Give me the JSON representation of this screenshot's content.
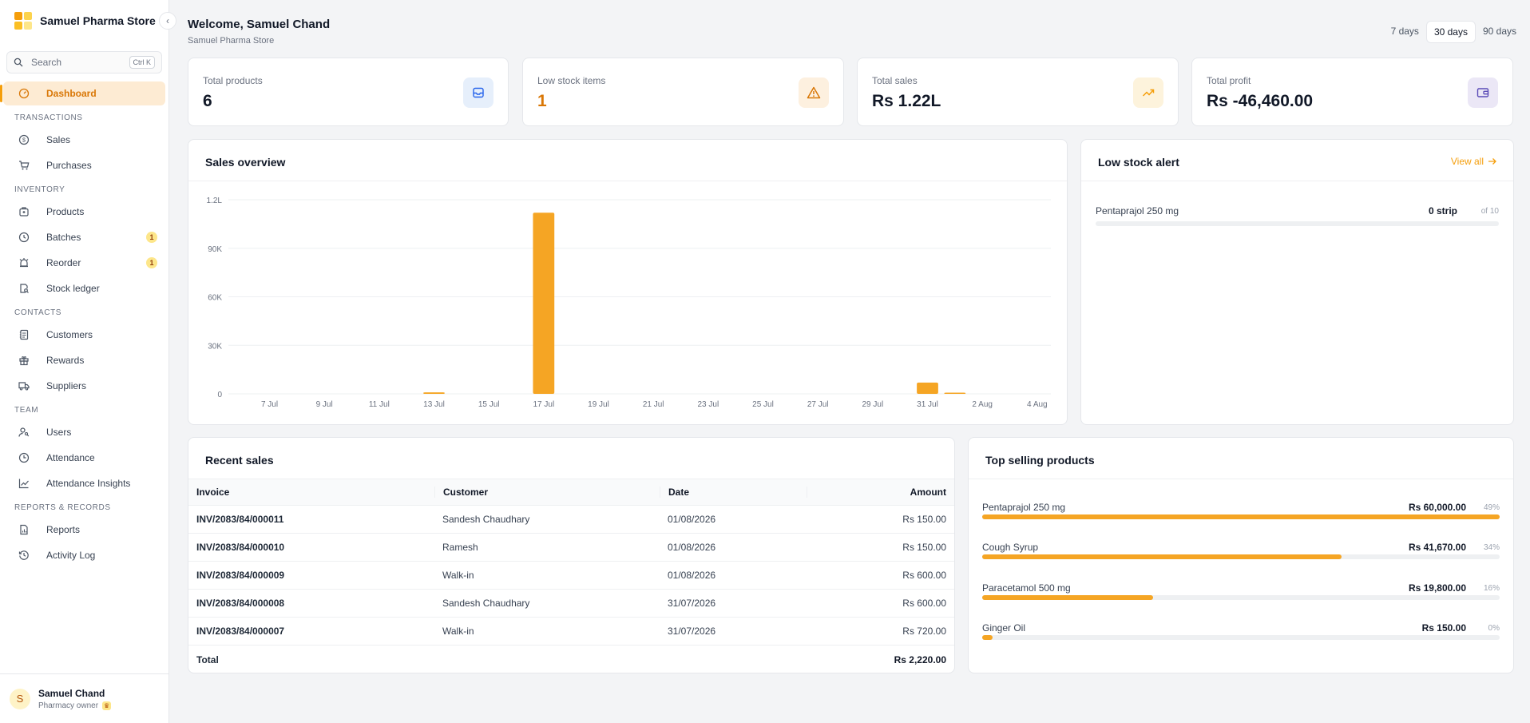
{
  "brand": {
    "name": "Samuel Pharma Store"
  },
  "search": {
    "label": "Search",
    "shortcut": "Ctrl K"
  },
  "nav": {
    "dashboard": "Dashboard",
    "sections": {
      "transactions": "TRANSACTIONS",
      "inventory": "INVENTORY",
      "contacts": "CONTACTS",
      "team": "TEAM",
      "reports": "REPORTS & RECORDS"
    },
    "items": {
      "sales": "Sales",
      "purchases": "Purchases",
      "products": "Products",
      "batches": "Batches",
      "reorder": "Reorder",
      "stock_ledger": "Stock ledger",
      "customers": "Customers",
      "rewards": "Rewards",
      "suppliers": "Suppliers",
      "users": "Users",
      "attendance": "Attendance",
      "attendance_insights": "Attendance Insights",
      "reports": "Reports",
      "activity_log": "Activity Log"
    },
    "badges": {
      "batches": "1",
      "reorder": "1"
    }
  },
  "user": {
    "name": "Samuel Chand",
    "role": "Pharmacy owner",
    "initial": "S"
  },
  "header": {
    "title": "Welcome, Samuel Chand",
    "subtitle": "Samuel Pharma Store"
  },
  "range": {
    "options": [
      "7 days",
      "30 days",
      "90 days"
    ],
    "selected": "30 days"
  },
  "stats": {
    "total_products": {
      "label": "Total products",
      "value": "6"
    },
    "low_stock": {
      "label": "Low stock items",
      "value": "1"
    },
    "total_sales": {
      "label": "Total sales",
      "value": "Rs 1.22L"
    },
    "total_profit": {
      "label": "Total profit",
      "value": "Rs -46,460.00"
    }
  },
  "sales_overview": {
    "title": "Sales overview"
  },
  "chart_data": {
    "type": "bar",
    "title": "Sales overview",
    "xlabel": "",
    "ylabel": "",
    "ylim": [
      0,
      120000
    ],
    "yticks": [
      0,
      30000,
      60000,
      90000,
      120000
    ],
    "ytick_labels": [
      "0",
      "30K",
      "60K",
      "90K",
      "1.2L"
    ],
    "grid": true,
    "categories": [
      "6 Jul",
      "7 Jul",
      "8 Jul",
      "9 Jul",
      "10 Jul",
      "11 Jul",
      "12 Jul",
      "13 Jul",
      "14 Jul",
      "15 Jul",
      "16 Jul",
      "17 Jul",
      "18 Jul",
      "19 Jul",
      "20 Jul",
      "21 Jul",
      "22 Jul",
      "23 Jul",
      "24 Jul",
      "25 Jul",
      "26 Jul",
      "27 Jul",
      "28 Jul",
      "29 Jul",
      "30 Jul",
      "31 Jul",
      "1 Aug",
      "2 Aug",
      "3 Aug",
      "4 Aug"
    ],
    "xtick_labels": [
      "7 Jul",
      "9 Jul",
      "11 Jul",
      "13 Jul",
      "15 Jul",
      "17 Jul",
      "19 Jul",
      "21 Jul",
      "23 Jul",
      "25 Jul",
      "27 Jul",
      "29 Jul",
      "31 Jul",
      "2 Aug",
      "4 Aug"
    ],
    "values": [
      0,
      0,
      0,
      0,
      0,
      0,
      0,
      900,
      0,
      0,
      0,
      112000,
      0,
      0,
      0,
      0,
      0,
      0,
      0,
      0,
      0,
      0,
      0,
      0,
      0,
      7000,
      300,
      0,
      0,
      0
    ],
    "color": "#f5a524"
  },
  "low_stock_alert": {
    "title": "Low stock alert",
    "view_all": "View all",
    "items": [
      {
        "name": "Pentaprajol 250 mg",
        "qty": "0 strip",
        "of": "of 10",
        "level": 0
      }
    ]
  },
  "recent_sales": {
    "title": "Recent sales",
    "columns": [
      "Invoice",
      "Customer",
      "Date",
      "Amount"
    ],
    "rows": [
      {
        "invoice": "INV/2083/84/000011",
        "customer": "Sandesh Chaudhary",
        "date": "01/08/2026",
        "amount": "Rs 150.00"
      },
      {
        "invoice": "INV/2083/84/000010",
        "customer": "Ramesh",
        "date": "01/08/2026",
        "amount": "Rs 150.00"
      },
      {
        "invoice": "INV/2083/84/000009",
        "customer": "Walk-in",
        "date": "01/08/2026",
        "amount": "Rs 600.00"
      },
      {
        "invoice": "INV/2083/84/000008",
        "customer": "Sandesh Chaudhary",
        "date": "31/07/2026",
        "amount": "Rs 600.00"
      },
      {
        "invoice": "INV/2083/84/000007",
        "customer": "Walk-in",
        "date": "31/07/2026",
        "amount": "Rs 720.00"
      }
    ],
    "total_label": "Total",
    "total_amount": "Rs 2,220.00"
  },
  "top_selling": {
    "title": "Top selling products",
    "items": [
      {
        "name": "Pentaprajol 250 mg",
        "amount": "Rs 60,000.00",
        "pct": "49%",
        "fill": 1.0
      },
      {
        "name": "Cough Syrup",
        "amount": "Rs 41,670.00",
        "pct": "34%",
        "fill": 0.695
      },
      {
        "name": "Paracetamol 500 mg",
        "amount": "Rs 19,800.00",
        "pct": "16%",
        "fill": 0.33
      },
      {
        "name": "Ginger Oil",
        "amount": "Rs 150.00",
        "pct": "0%",
        "fill": 0.02
      }
    ]
  },
  "colors": {
    "accent": "#f59e0b",
    "bar": "#f5a524"
  }
}
